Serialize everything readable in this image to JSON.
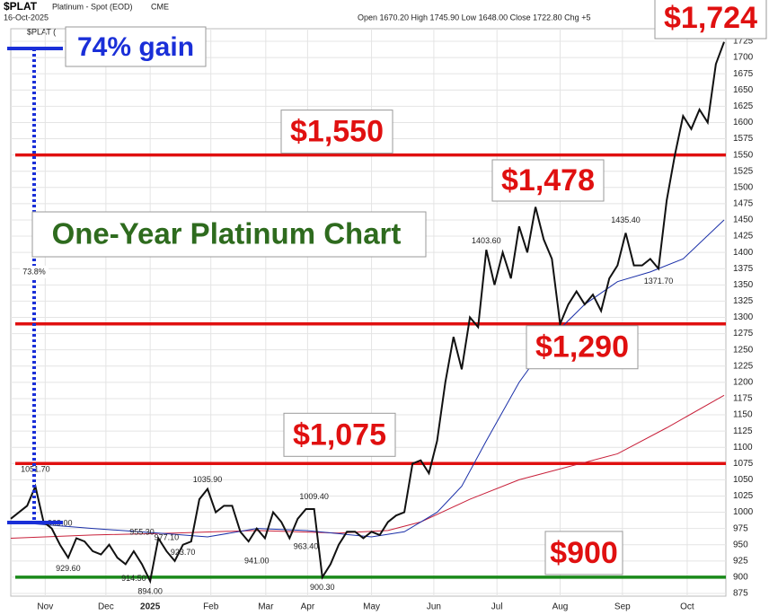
{
  "chart_data": {
    "type": "line",
    "header": {
      "symbol": "$PLAT",
      "name": "Platinum - Spot (EOD)",
      "exchange": "CME",
      "date": "16-Oct-2025",
      "ohlc": "Open 1670.20  High 1745.90  Low 1648.00  Close 1722.80  Chg +5",
      "legend": "$PLAT ("
    },
    "title": "One-Year Platinum Chart",
    "gain_label": "74% gain",
    "gain_percent": "73.8%",
    "series": [
      {
        "name": "$PLAT",
        "color": "#111111",
        "values": [
          990,
          1000,
          1010,
          1040,
          985,
          975,
          950,
          930,
          960,
          955,
          940,
          935,
          950,
          930,
          920,
          940,
          920,
          894,
          960,
          940,
          925,
          950,
          955,
          1020,
          1035.9,
          1000,
          1010,
          1010,
          970,
          955,
          975,
          960,
          1000,
          985,
          960,
          990,
          1005,
          1005,
          900,
          920,
          950,
          970,
          970,
          960,
          970,
          965,
          985,
          995,
          1000,
          1075,
          1080,
          1060,
          1110,
          1200,
          1270,
          1220,
          1300,
          1285,
          1404,
          1350,
          1400,
          1360,
          1440,
          1400,
          1470,
          1420,
          1390,
          1290,
          1320,
          1340,
          1320,
          1335,
          1310,
          1360,
          1380,
          1430,
          1380,
          1380,
          1390,
          1375,
          1480,
          1550,
          1610,
          1590,
          1620,
          1600,
          1690,
          1724
        ]
      },
      {
        "color": "#1a2fa8",
        "x": [
          0,
          10,
          18,
          24,
          30,
          36,
          44,
          48,
          52,
          55,
          58,
          62,
          66,
          70,
          74,
          78,
          82,
          87
        ],
        "values": [
          985,
          975,
          968,
          962,
          975,
          972,
          962,
          970,
          1000,
          1040,
          1110,
          1200,
          1270,
          1320,
          1355,
          1370,
          1390,
          1450
        ]
      },
      {
        "color": "#c8203a",
        "x": [
          0,
          10,
          20,
          30,
          40,
          46,
          50,
          56,
          62,
          68,
          74,
          80,
          87
        ],
        "values": [
          960,
          965,
          968,
          972,
          968,
          972,
          985,
          1020,
          1050,
          1070,
          1090,
          1130,
          1180
        ]
      }
    ],
    "point_labels": [
      {
        "x": 3,
        "value": 1051.7,
        "label": "1051.70"
      },
      {
        "x": 6,
        "value": 969,
        "label": "969.00"
      },
      {
        "x": 7,
        "value": 929.6,
        "label": "929.60"
      },
      {
        "x": 15,
        "value": 914.5,
        "label": "914.50"
      },
      {
        "x": 17,
        "value": 894,
        "label": "894.00"
      },
      {
        "x": 16,
        "value": 955.3,
        "label": "955.30"
      },
      {
        "x": 19,
        "value": 977.1,
        "label": "977.10"
      },
      {
        "x": 21,
        "value": 923.7,
        "label": "923.70"
      },
      {
        "x": 24,
        "value": 1035.9,
        "label": "1035.90"
      },
      {
        "x": 30,
        "value": 941,
        "label": "941.00"
      },
      {
        "x": 36,
        "value": 963.4,
        "label": "963.40"
      },
      {
        "x": 37,
        "value": 1009.4,
        "label": "1009.40"
      },
      {
        "x": 38,
        "value": 900.3,
        "label": "900.30"
      },
      {
        "x": 58,
        "value": 1403.6,
        "label": "1403.60"
      },
      {
        "x": 75,
        "value": 1435.4,
        "label": "1435.40"
      },
      {
        "x": 79,
        "value": 1371.7,
        "label": "1371.70"
      }
    ],
    "reference_lines": [
      {
        "value": 1550,
        "label": "$1,550",
        "color": "#e01010"
      },
      {
        "value": 1290,
        "label": "$1,290",
        "color": "#e01010"
      },
      {
        "value": 1075,
        "label": "$1,075",
        "color": "#e01010"
      },
      {
        "value": 900,
        "label": "$900",
        "color": "#1a8a1a"
      }
    ],
    "annotations": [
      {
        "value": 1478,
        "label": "$1,478"
      },
      {
        "value": 1724,
        "label": "$1,724"
      }
    ],
    "xlim": [
      0,
      87
    ],
    "xticks": [
      {
        "value": 4.2,
        "label": "Nov"
      },
      {
        "value": 11.6,
        "label": "Dec"
      },
      {
        "value": 17,
        "label": "2025"
      },
      {
        "value": 24.4,
        "label": "Feb"
      },
      {
        "value": 31.1,
        "label": "Mar"
      },
      {
        "value": 36.2,
        "label": "Apr"
      },
      {
        "value": 44,
        "label": "May"
      },
      {
        "value": 51.6,
        "label": "Jun"
      },
      {
        "value": 59.3,
        "label": "Jul"
      },
      {
        "value": 67,
        "label": "Aug"
      },
      {
        "value": 74.6,
        "label": "Sep"
      },
      {
        "value": 82.5,
        "label": "Oct"
      }
    ],
    "ylim": [
      875,
      1725
    ],
    "yticks": [
      875,
      900,
      925,
      950,
      975,
      1000,
      1025,
      1050,
      1075,
      1100,
      1125,
      1150,
      1175,
      1200,
      1225,
      1250,
      1275,
      1300,
      1325,
      1350,
      1375,
      1400,
      1425,
      1450,
      1475,
      1500,
      1525,
      1550,
      1575,
      1600,
      1625,
      1650,
      1675,
      1700,
      1725
    ],
    "grid": true
  }
}
